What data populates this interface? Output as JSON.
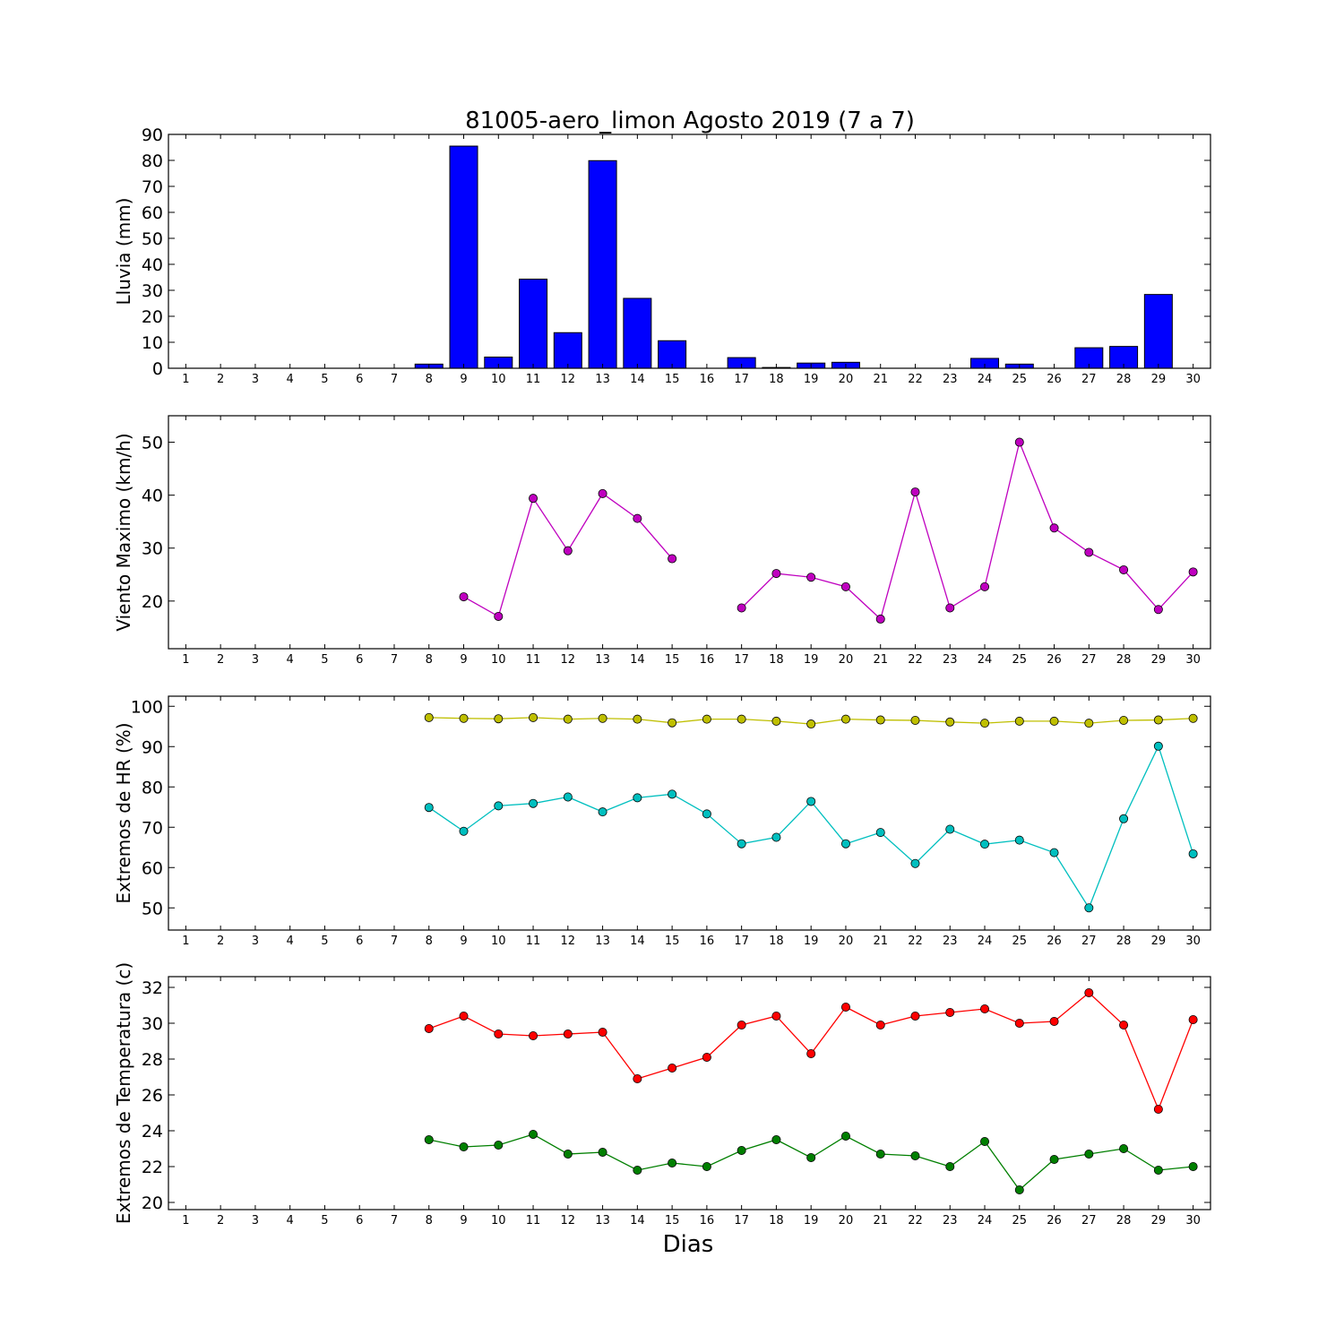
{
  "figure": {
    "title": "81005-aero_limon Agosto 2019  (7 a 7)",
    "xlabel": "Dias"
  },
  "chart_data": [
    {
      "type": "bar",
      "id": "rain",
      "ylabel": "Lluvia (mm)",
      "ylim": [
        0,
        90
      ],
      "yticks": [
        0,
        10,
        20,
        30,
        40,
        50,
        60,
        70,
        80,
        90
      ],
      "xlim": [
        0.5,
        30.5
      ],
      "x": [
        1,
        2,
        3,
        4,
        5,
        6,
        7,
        8,
        9,
        10,
        11,
        12,
        13,
        14,
        15,
        16,
        17,
        18,
        19,
        20,
        21,
        22,
        23,
        24,
        25,
        26,
        27,
        28,
        29,
        30
      ],
      "series": [
        {
          "color": "#0000ff",
          "values": [
            null,
            null,
            null,
            null,
            null,
            null,
            null,
            1.6,
            85.5,
            4.3,
            34.3,
            13.7,
            79.9,
            26.9,
            10.6,
            null,
            4.1,
            0.3,
            2.0,
            2.3,
            null,
            null,
            null,
            3.8,
            1.6,
            null,
            7.9,
            8.4,
            28.4,
            null
          ]
        }
      ]
    },
    {
      "type": "line",
      "id": "wind",
      "ylabel": "Viento Maximo (km/h)",
      "ylim": [
        11,
        55
      ],
      "yticks": [
        20,
        30,
        40,
        50
      ],
      "xlim": [
        0.5,
        30.5
      ],
      "x": [
        1,
        2,
        3,
        4,
        5,
        6,
        7,
        8,
        9,
        10,
        11,
        12,
        13,
        14,
        15,
        16,
        17,
        18,
        19,
        20,
        21,
        22,
        23,
        24,
        25,
        26,
        27,
        28,
        29,
        30
      ],
      "series": [
        {
          "color": "#bf00bf",
          "values": [
            null,
            null,
            null,
            null,
            null,
            null,
            null,
            null,
            20.8,
            17.1,
            39.4,
            29.5,
            40.3,
            35.6,
            28.0,
            null,
            18.7,
            25.2,
            24.5,
            22.7,
            16.6,
            40.6,
            18.7,
            22.7,
            50.0,
            33.8,
            29.2,
            25.9,
            18.4,
            25.5
          ]
        }
      ]
    },
    {
      "type": "line",
      "id": "humidity",
      "ylabel": "Extremos de HR (%)",
      "ylim": [
        44.5,
        102.5
      ],
      "yticks": [
        50,
        60,
        70,
        80,
        90,
        100
      ],
      "xlim": [
        0.5,
        30.5
      ],
      "x": [
        1,
        2,
        3,
        4,
        5,
        6,
        7,
        8,
        9,
        10,
        11,
        12,
        13,
        14,
        15,
        16,
        17,
        18,
        19,
        20,
        21,
        22,
        23,
        24,
        25,
        26,
        27,
        28,
        29,
        30
      ],
      "series": [
        {
          "color": "#bfbf00",
          "values": [
            null,
            null,
            null,
            null,
            null,
            null,
            null,
            97.2,
            97.0,
            96.9,
            97.2,
            96.8,
            97.0,
            96.8,
            95.9,
            96.8,
            96.8,
            96.3,
            95.6,
            96.8,
            96.6,
            96.5,
            96.1,
            95.8,
            96.3,
            96.3,
            95.8,
            96.5,
            96.6,
            97.0
          ]
        },
        {
          "color": "#00bfbf",
          "values": [
            null,
            null,
            null,
            null,
            null,
            null,
            null,
            74.9,
            69.0,
            75.3,
            75.9,
            77.5,
            73.8,
            77.3,
            78.2,
            73.3,
            65.9,
            67.5,
            76.4,
            65.9,
            68.7,
            61.0,
            69.5,
            65.8,
            66.8,
            63.7,
            50.0,
            72.1,
            90.1,
            63.4
          ]
        }
      ]
    },
    {
      "type": "line",
      "id": "temperature",
      "ylabel": "Extremos de Temperatura (c)",
      "ylim": [
        19.6,
        32.6
      ],
      "yticks": [
        20,
        22,
        24,
        26,
        28,
        30,
        32
      ],
      "xlim": [
        0.5,
        30.5
      ],
      "x": [
        1,
        2,
        3,
        4,
        5,
        6,
        7,
        8,
        9,
        10,
        11,
        12,
        13,
        14,
        15,
        16,
        17,
        18,
        19,
        20,
        21,
        22,
        23,
        24,
        25,
        26,
        27,
        28,
        29,
        30
      ],
      "series": [
        {
          "color": "#ff0000",
          "values": [
            null,
            null,
            null,
            null,
            null,
            null,
            null,
            29.7,
            30.4,
            29.4,
            29.3,
            29.4,
            29.5,
            26.9,
            27.5,
            28.1,
            29.9,
            30.4,
            28.3,
            30.9,
            29.9,
            30.4,
            30.6,
            30.8,
            30.0,
            30.1,
            31.7,
            29.9,
            25.2,
            30.2
          ]
        },
        {
          "color": "#007f00",
          "values": [
            null,
            null,
            null,
            null,
            null,
            null,
            null,
            23.5,
            23.1,
            23.2,
            23.8,
            22.7,
            22.8,
            21.8,
            22.2,
            22.0,
            22.9,
            23.5,
            22.5,
            23.7,
            22.7,
            22.6,
            22.0,
            23.4,
            20.7,
            22.4,
            22.7,
            23.0,
            21.8,
            22.0
          ]
        }
      ]
    }
  ]
}
